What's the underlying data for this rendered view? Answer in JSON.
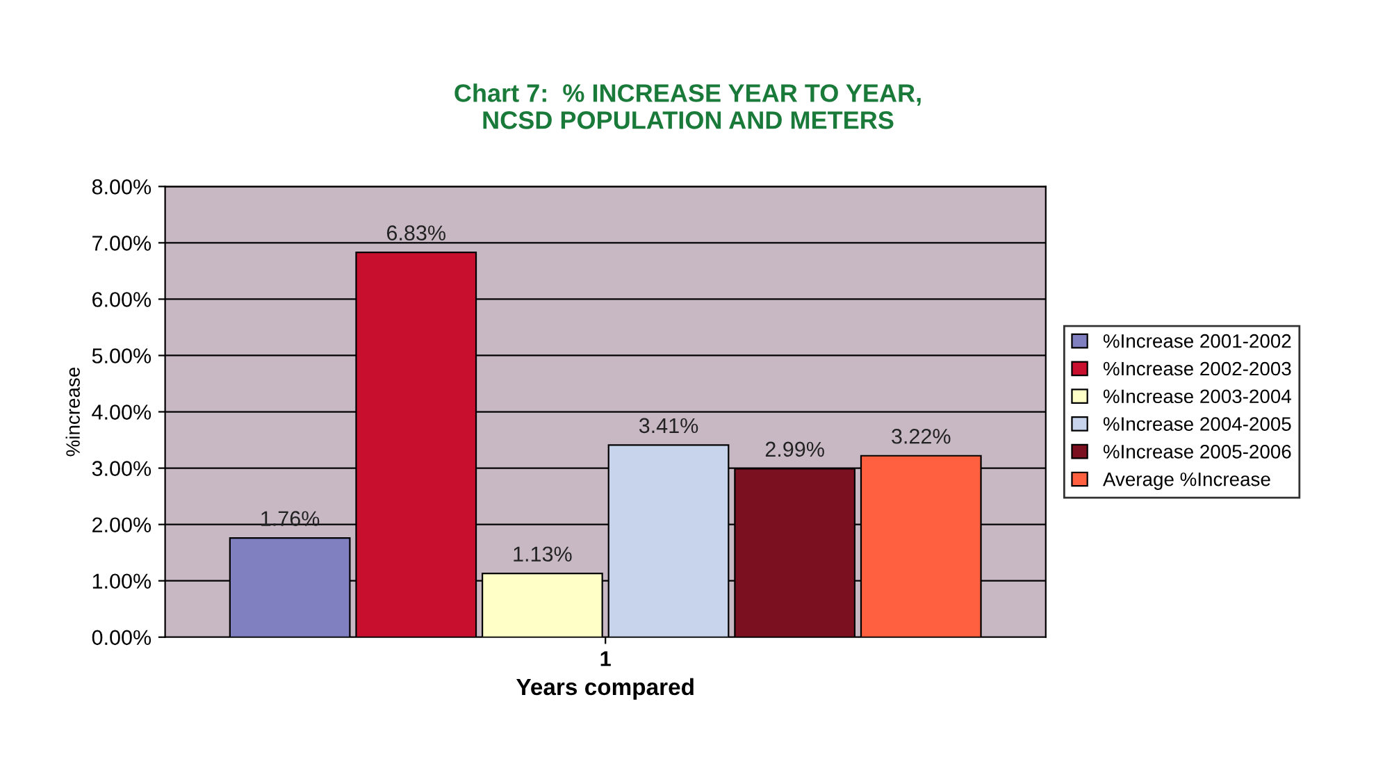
{
  "chart_data": {
    "type": "bar",
    "title": "Chart 7:  % INCREASE YEAR TO YEAR,\nNCSD POPULATION AND METERS",
    "xlabel": "Years compared",
    "ylabel": "%increase",
    "categories": [
      "1"
    ],
    "series": [
      {
        "name": "%Increase 2001-2002",
        "color": "#8080c0",
        "values": [
          1.76
        ],
        "value_labels": [
          "1.76%"
        ]
      },
      {
        "name": "%Increase 2002-2003",
        "color": "#c8102e",
        "values": [
          6.83
        ],
        "value_labels": [
          "6.83%"
        ]
      },
      {
        "name": "%Increase 2003-2004",
        "color": "#ffffc8",
        "values": [
          1.13
        ],
        "value_labels": [
          "1.13%"
        ]
      },
      {
        "name": "%Increase 2004-2005",
        "color": "#c8d4ec",
        "values": [
          3.41
        ],
        "value_labels": [
          "3.41%"
        ]
      },
      {
        "name": "%Increase 2005-2006",
        "color": "#7a1020",
        "values": [
          2.99
        ],
        "value_labels": [
          "2.99%"
        ]
      },
      {
        "name": "Average %Increase",
        "color": "#ff6040",
        "values": [
          3.22
        ],
        "value_labels": [
          "3.22%"
        ]
      }
    ],
    "ylim": [
      0,
      8
    ],
    "yticks": [
      {
        "value": 0,
        "label": "0.00%"
      },
      {
        "value": 1,
        "label": "1.00%"
      },
      {
        "value": 2,
        "label": "2.00%"
      },
      {
        "value": 3,
        "label": "3.00%"
      },
      {
        "value": 4,
        "label": "4.00%"
      },
      {
        "value": 5,
        "label": "5.00%"
      },
      {
        "value": 6,
        "label": "6.00%"
      },
      {
        "value": 7,
        "label": "7.00%"
      },
      {
        "value": 8,
        "label": "8.00%"
      }
    ],
    "grid": "y",
    "legend": "right"
  }
}
